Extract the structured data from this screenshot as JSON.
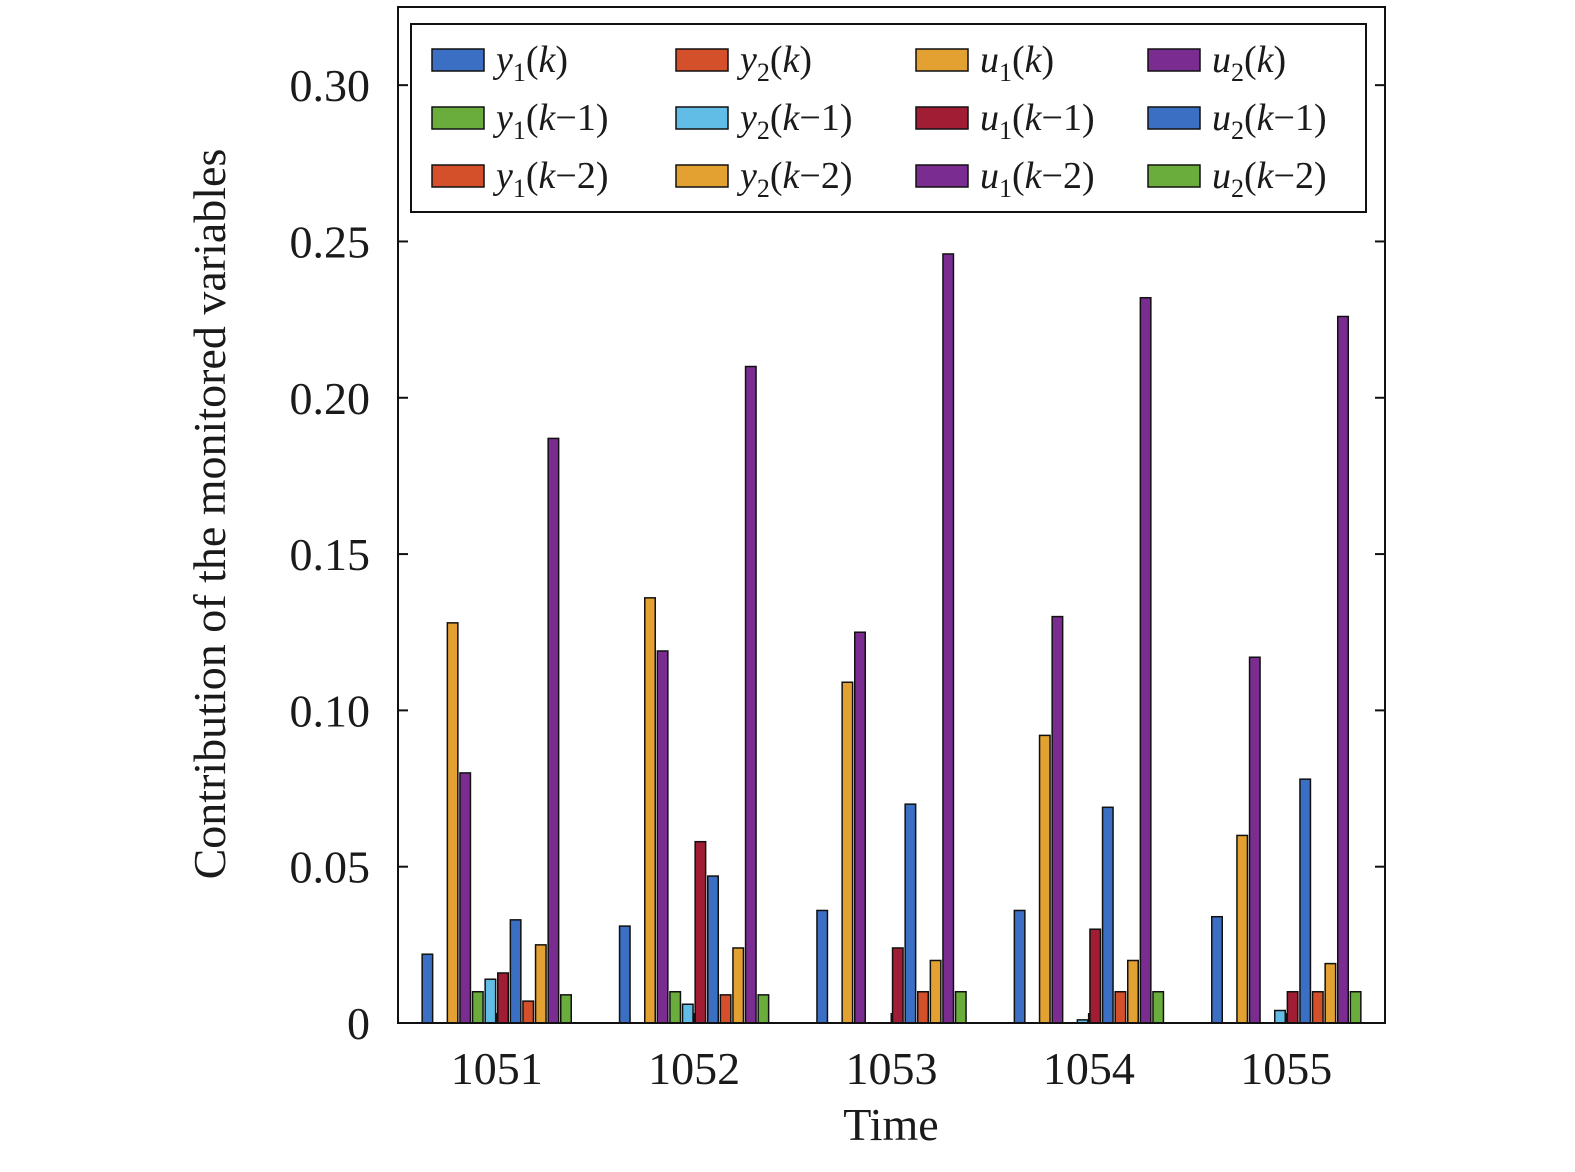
{
  "chart_data": {
    "type": "bar",
    "xlabel": "Time",
    "ylabel": "Contribution of the monitored variables",
    "ylim": [
      0,
      0.325
    ],
    "yticks": [
      0,
      0.05,
      0.1,
      0.15,
      0.2,
      0.25,
      0.3
    ],
    "ytick_labels": [
      "0",
      "0.05",
      "0.10",
      "0.15",
      "0.20",
      "0.25",
      "0.30"
    ],
    "categories": [
      "1051",
      "1052",
      "1053",
      "1054",
      "1055"
    ],
    "legend_placement": "top",
    "series": [
      {
        "name": "y1(k)",
        "label": {
          "base": "y",
          "sub": "1",
          "arg": "k"
        },
        "color": "#3a6fc4",
        "values": [
          0.022,
          0.031,
          0.036,
          0.036,
          0.034
        ]
      },
      {
        "name": "y2(k)",
        "label": {
          "base": "y",
          "sub": "2",
          "arg": "k"
        },
        "color": "#d4502a",
        "values": [
          0.0,
          0.0,
          0.0,
          0.0,
          0.0
        ]
      },
      {
        "name": "u1(k)",
        "label": {
          "base": "u",
          "sub": "1",
          "arg": "k"
        },
        "color": "#e2a130",
        "values": [
          0.128,
          0.136,
          0.109,
          0.092,
          0.06
        ]
      },
      {
        "name": "u2(k)",
        "label": {
          "base": "u",
          "sub": "2",
          "arg": "k"
        },
        "color": "#7a2c90",
        "values": [
          0.08,
          0.119,
          0.125,
          0.13,
          0.117
        ]
      },
      {
        "name": "y1(k−1)",
        "label": {
          "base": "y",
          "sub": "1",
          "arg": "k−1"
        },
        "color": "#6aad3c",
        "values": [
          0.01,
          0.01,
          0.0,
          0.0,
          0.0
        ]
      },
      {
        "name": "y2(k−1)",
        "label": {
          "base": "y",
          "sub": "2",
          "arg": "k−1"
        },
        "color": "#62bde6",
        "values": [
          0.014,
          0.006,
          0.0,
          0.001,
          0.004
        ]
      },
      {
        "name": "u1(k−1)",
        "label": {
          "base": "u",
          "sub": "1",
          "arg": "k−1"
        },
        "color": "#a11d33",
        "values": [
          0.016,
          0.058,
          0.024,
          0.03,
          0.01
        ]
      },
      {
        "name": "u2(k−1)",
        "label": {
          "base": "u",
          "sub": "2",
          "arg": "k−1"
        },
        "color": "#3a6fc4",
        "values": [
          0.033,
          0.047,
          0.07,
          0.069,
          0.078
        ]
      },
      {
        "name": "y1(k−2)",
        "label": {
          "base": "y",
          "sub": "1",
          "arg": "k−2"
        },
        "color": "#d4502a",
        "values": [
          0.007,
          0.009,
          0.01,
          0.01,
          0.01
        ]
      },
      {
        "name": "y2(k−2)",
        "label": {
          "base": "y",
          "sub": "2",
          "arg": "k−2"
        },
        "color": "#e2a130",
        "values": [
          0.025,
          0.024,
          0.02,
          0.02,
          0.019
        ]
      },
      {
        "name": "u1(k−2)",
        "label": {
          "base": "u",
          "sub": "1",
          "arg": "k−2"
        },
        "color": "#7a2c90",
        "values": [
          0.187,
          0.21,
          0.246,
          0.232,
          0.226
        ]
      },
      {
        "name": "u2(k−2)",
        "label": {
          "base": "u",
          "sub": "2",
          "arg": "k−2"
        },
        "color": "#6aad3c",
        "values": [
          0.009,
          0.009,
          0.01,
          0.01,
          0.01
        ]
      }
    ]
  }
}
